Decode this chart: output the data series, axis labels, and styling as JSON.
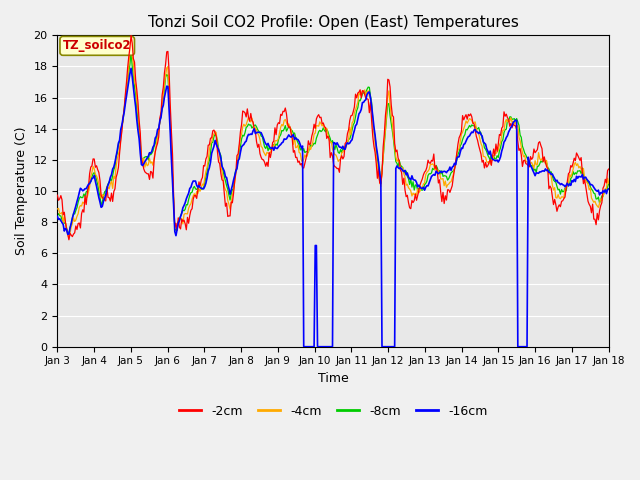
{
  "title": "Tonzi Soil CO2 Profile: Open (East) Temperatures",
  "ylabel": "Soil Temperature (C)",
  "xlabel": "Time",
  "annotation": "TZ_soilco2",
  "ylim": [
    0,
    20
  ],
  "yticks": [
    0,
    2,
    4,
    6,
    8,
    10,
    12,
    14,
    16,
    18,
    20
  ],
  "legend_labels": [
    "-2cm",
    "-4cm",
    "-8cm",
    "-16cm"
  ],
  "legend_colors": [
    "#ff0000",
    "#ffaa00",
    "#00cc00",
    "#0000ff"
  ],
  "xtick_labels": [
    "Jan 3",
    "Jan 4",
    "Jan 5",
    "Jan 6",
    "Jan 7",
    "Jan 8",
    "Jan 9",
    "Jan 10",
    "Jan 11",
    "Jan 12",
    "Jan 13",
    "Jan 14",
    "Jan 15",
    "Jan 16",
    "Jan 17",
    "Jan 18"
  ],
  "plot_bg": "#e8e8e8",
  "fig_bg": "#f0f0f0",
  "grid_color": "#ffffff",
  "title_fontsize": 11,
  "label_fontsize": 9,
  "tick_fontsize": 7.5,
  "legend_fontsize": 9
}
